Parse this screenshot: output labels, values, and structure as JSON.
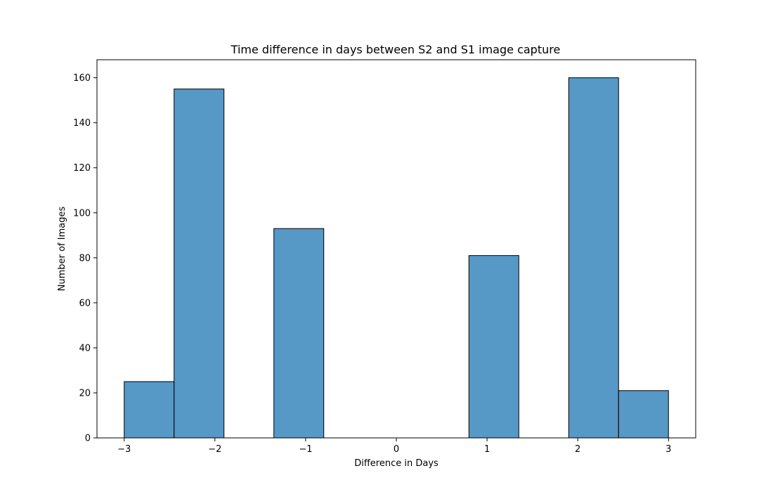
{
  "chart_data": {
    "type": "bar",
    "title": "Time difference in days between S2 and S1 image capture",
    "xlabel": "Difference in Days",
    "ylabel": "Number of Images",
    "bins": [
      {
        "x0": -3.0,
        "x1": -2.45,
        "value": 25
      },
      {
        "x0": -2.45,
        "x1": -1.9,
        "value": 155
      },
      {
        "x0": -1.9,
        "x1": -1.35,
        "value": 0
      },
      {
        "x0": -1.35,
        "x1": -0.8,
        "value": 93
      },
      {
        "x0": -0.8,
        "x1": -0.25,
        "value": 0
      },
      {
        "x0": -0.25,
        "x1": 0.3,
        "value": 0
      },
      {
        "x0": 0.3,
        "x1": 0.8,
        "value": 0
      },
      {
        "x0": 0.8,
        "x1": 1.35,
        "value": 81
      },
      {
        "x0": 1.35,
        "x1": 1.9,
        "value": 0
      },
      {
        "x0": 1.9,
        "x1": 2.45,
        "value": 160
      },
      {
        "x0": 2.45,
        "x1": 3.0,
        "value": 21
      }
    ],
    "xlim": [
      -3.3,
      3.3
    ],
    "ylim": [
      0,
      168
    ],
    "xticks": [
      -3,
      -2,
      -1,
      0,
      1,
      2,
      3
    ],
    "xtick_labels": [
      "−3",
      "−2",
      "−1",
      "0",
      "1",
      "2",
      "3"
    ],
    "yticks": [
      0,
      20,
      40,
      60,
      80,
      100,
      120,
      140,
      160
    ],
    "bar_color": "#5698c6",
    "edge_color": "#000000",
    "grid": false
  }
}
